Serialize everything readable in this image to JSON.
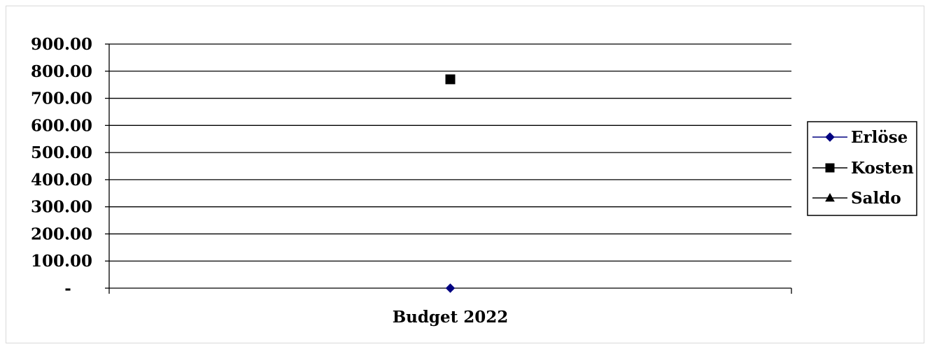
{
  "chart_data": {
    "type": "line",
    "categories": [
      "Budget 2022"
    ],
    "series": [
      {
        "name": "Erlöse",
        "values": [
          0
        ],
        "color": "#000080",
        "marker": "diamond"
      },
      {
        "name": "Kosten",
        "values": [
          770
        ],
        "color": "#000000",
        "marker": "square"
      },
      {
        "name": "Saldo",
        "values": [
          null
        ],
        "color": "#000000",
        "marker": "triangle"
      }
    ],
    "title": "",
    "xlabel": "",
    "ylabel": "",
    "ylim": [
      0,
      900
    ],
    "yticks": [
      {
        "value": 0,
        "label": "-"
      },
      {
        "value": 100,
        "label": "100.00"
      },
      {
        "value": 200,
        "label": "200.00"
      },
      {
        "value": 300,
        "label": "300.00"
      },
      {
        "value": 400,
        "label": "400.00"
      },
      {
        "value": 500,
        "label": "500.00"
      },
      {
        "value": 600,
        "label": "600.00"
      },
      {
        "value": 700,
        "label": "700.00"
      },
      {
        "value": 800,
        "label": "800.00"
      },
      {
        "value": 900,
        "label": "900.00"
      }
    ],
    "grid": true,
    "legend_position": "right"
  }
}
